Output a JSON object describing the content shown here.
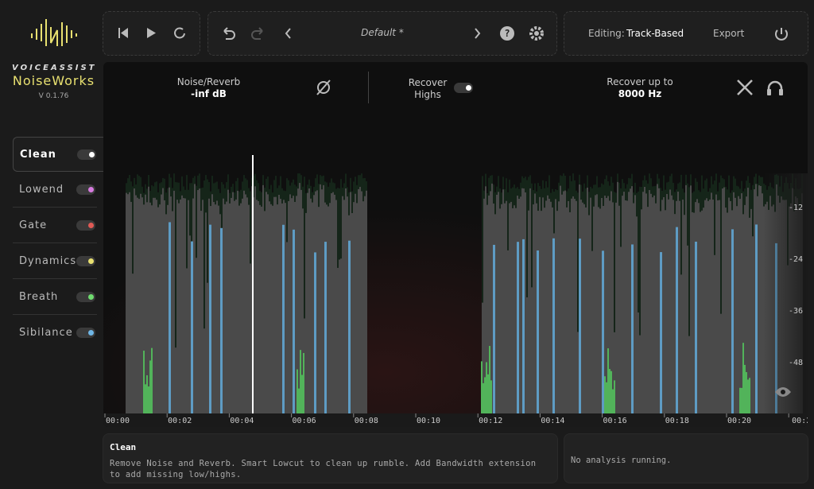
{
  "brand": {
    "company": "VOICEASSIST",
    "product": "NoiseWorks",
    "version": "V 0.1.76"
  },
  "toolbar": {
    "preset": "Default *",
    "editing_label": "Editing:",
    "editing_mode": "Track-Based",
    "export": "Export"
  },
  "controls": {
    "noise_label": "Noise/Reverb",
    "noise_value": "-inf dB",
    "recover_highs": [
      "Recover",
      "Highs"
    ],
    "recover_up_to_label": "Recover up to",
    "recover_up_to_value": "8000 Hz"
  },
  "modules": [
    {
      "name": "Clean",
      "color": "#ffffff",
      "active": true
    },
    {
      "name": "Lowend",
      "color": "#d77be0",
      "active": false
    },
    {
      "name": "Gate",
      "color": "#e05a55",
      "active": false
    },
    {
      "name": "Dynamics",
      "color": "#e8e070",
      "active": false
    },
    {
      "name": "Breath",
      "color": "#6fdc6f",
      "active": false
    },
    {
      "name": "Sibilance",
      "color": "#6fb6e6",
      "active": false
    }
  ],
  "time_labels": [
    "00:00",
    "00:02",
    "00:04",
    "00:06",
    "00:08",
    "00:10",
    "00:12",
    "00:14",
    "00:16",
    "00:18",
    "00:20",
    "00:2"
  ],
  "db_labels": [
    "-12",
    "-24",
    "-36",
    "-48"
  ],
  "info": {
    "title": "Clean",
    "description": "Remove Noise and Reverb. Smart Lowcut to clean up rumble. Add Bandwidth extension to add missing low/highs.",
    "status": "No analysis running."
  }
}
